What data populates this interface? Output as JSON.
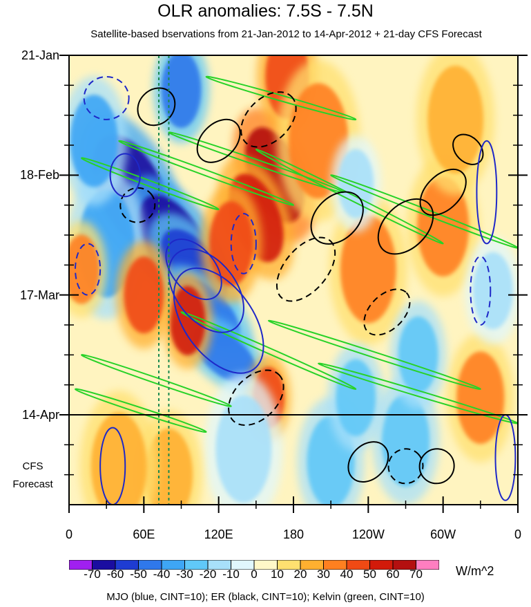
{
  "chart_data": {
    "type": "heatmap",
    "title": "OLR anomalies: 7.5S - 7.5N",
    "subtitle": "Satellite-based bservations from 21-Jan-2012 to 14-Apr-2012 + 21-day CFS Forecast",
    "x_tick_labels": [
      "0",
      "60E",
      "120E",
      "180",
      "120W",
      "60W",
      "0"
    ],
    "x_tick_longitudes": [
      0,
      60,
      120,
      180,
      240,
      300,
      360
    ],
    "y_tick_labels": [
      "21-Jan",
      "18-Feb",
      "17-Mar",
      "14-Apr"
    ],
    "y_tick_days": [
      0,
      28,
      56,
      84
    ],
    "forecast_label": [
      "CFS",
      "Forecast"
    ],
    "time_range_days": [
      0,
      105
    ],
    "observation_end_day": 84,
    "colorbar": {
      "levels": [
        "-70",
        "-60",
        "-50",
        "-40",
        "-30",
        "-20",
        "-10",
        "0",
        "10",
        "20",
        "30",
        "40",
        "50",
        "60",
        "70"
      ],
      "units": "W/m^2",
      "colors": [
        "#a020f0",
        "#1a0da0",
        "#1e3cd2",
        "#2f78eb",
        "#3ea6f5",
        "#60c8f8",
        "#a8e0fa",
        "#e0f7fd",
        "#fff8c8",
        "#ffe070",
        "#ffb030",
        "#ff8020",
        "#f04a14",
        "#d21a0a",
        "#b41010",
        "#ff7ec0"
      ]
    },
    "footer": "MJO (blue, CINT=10); ER (black, CINT=10); Kelvin (green, CINT=10)",
    "contour_colors": {
      "mjo": "#1e28c8",
      "er": "#000000",
      "kelvin": "#28d228",
      "reference": "#1a8a50"
    },
    "reference_longitudes": [
      72,
      80
    ],
    "anomaly_blobs": [
      {
        "lon": 50,
        "day": 32,
        "value": -65,
        "size": 16,
        "tilt": -25
      },
      {
        "lon": 85,
        "day": 44,
        "value": -70,
        "size": 14,
        "tilt": -30
      },
      {
        "lon": 100,
        "day": 50,
        "value": -55,
        "size": 12,
        "tilt": -35
      },
      {
        "lon": 110,
        "day": 60,
        "value": -50,
        "size": 11,
        "tilt": -45
      },
      {
        "lon": 125,
        "day": 70,
        "value": -45,
        "size": 10,
        "tilt": -50
      },
      {
        "lon": 30,
        "day": 44,
        "value": -40,
        "size": 14,
        "tilt": 0
      },
      {
        "lon": 20,
        "day": 20,
        "value": -35,
        "size": 12,
        "tilt": 0
      },
      {
        "lon": 90,
        "day": 8,
        "value": -45,
        "size": 10,
        "tilt": 0
      },
      {
        "lon": 165,
        "day": 28,
        "value": 65,
        "size": 13,
        "tilt": -20
      },
      {
        "lon": 150,
        "day": 38,
        "value": 50,
        "size": 12,
        "tilt": -20
      },
      {
        "lon": 175,
        "day": 5,
        "value": 45,
        "size": 11,
        "tilt": 0
      },
      {
        "lon": 130,
        "day": 44,
        "value": 40,
        "size": 11,
        "tilt": 0
      },
      {
        "lon": 95,
        "day": 62,
        "value": 55,
        "size": 9,
        "tilt": 0
      },
      {
        "lon": 60,
        "day": 56,
        "value": 45,
        "size": 10,
        "tilt": 0
      },
      {
        "lon": 10,
        "day": 50,
        "value": 35,
        "size": 9,
        "tilt": 0
      },
      {
        "lon": 160,
        "day": 80,
        "value": 45,
        "size": 8,
        "tilt": 0
      },
      {
        "lon": 200,
        "day": 20,
        "value": 35,
        "size": 15,
        "tilt": 0
      },
      {
        "lon": 240,
        "day": 50,
        "value": 30,
        "size": 14,
        "tilt": 0
      },
      {
        "lon": 300,
        "day": 40,
        "value": 35,
        "size": 13,
        "tilt": 0
      },
      {
        "lon": 330,
        "day": 80,
        "value": 30,
        "size": 12,
        "tilt": 0
      },
      {
        "lon": 310,
        "day": 15,
        "value": 25,
        "size": 14,
        "tilt": 0
      },
      {
        "lon": 270,
        "day": 90,
        "value": -30,
        "size": 12,
        "tilt": 0
      },
      {
        "lon": 210,
        "day": 95,
        "value": -25,
        "size": 12,
        "tilt": 0
      },
      {
        "lon": 140,
        "day": 92,
        "value": -20,
        "size": 14,
        "tilt": 0
      },
      {
        "lon": 80,
        "day": 98,
        "value": 20,
        "size": 12,
        "tilt": 0
      },
      {
        "lon": 230,
        "day": 80,
        "value": -30,
        "size": 10,
        "tilt": 0
      },
      {
        "lon": 280,
        "day": 70,
        "value": -25,
        "size": 10,
        "tilt": 0
      },
      {
        "lon": 230,
        "day": 30,
        "value": -20,
        "size": 9,
        "tilt": 0
      },
      {
        "lon": 40,
        "day": 96,
        "value": 20,
        "size": 14,
        "tilt": 0
      },
      {
        "lon": 340,
        "day": 55,
        "value": -20,
        "size": 10,
        "tilt": 0
      }
    ],
    "contours": {
      "mjo": [
        {
          "lon": 100,
          "day": 50,
          "rx": 28,
          "ry": 5,
          "tilt": 50,
          "dashed": false
        },
        {
          "lon": 110,
          "day": 55,
          "rx": 38,
          "ry": 7,
          "tilt": 52,
          "dashed": false
        },
        {
          "lon": 120,
          "day": 62,
          "rx": 48,
          "ry": 8,
          "tilt": 54,
          "dashed": false
        },
        {
          "lon": 30,
          "day": 10,
          "rx": 18,
          "ry": 5,
          "tilt": 0,
          "dashed": true
        },
        {
          "lon": 15,
          "day": 50,
          "rx": 10,
          "ry": 6,
          "tilt": 0,
          "dashed": true
        },
        {
          "lon": 45,
          "day": 28,
          "rx": 12,
          "ry": 5,
          "tilt": 0,
          "dashed": false
        },
        {
          "lon": 335,
          "day": 32,
          "rx": 8,
          "ry": 12,
          "tilt": 0,
          "dashed": false
        },
        {
          "lon": 330,
          "day": 55,
          "rx": 8,
          "ry": 8,
          "tilt": 0,
          "dashed": true
        },
        {
          "lon": 35,
          "day": 96,
          "rx": 10,
          "ry": 9,
          "tilt": 0,
          "dashed": false
        },
        {
          "lon": 350,
          "day": 94,
          "rx": 8,
          "ry": 10,
          "tilt": 0,
          "dashed": false
        },
        {
          "lon": 140,
          "day": 44,
          "rx": 10,
          "ry": 7,
          "tilt": 0,
          "dashed": true
        }
      ],
      "er": [
        {
          "lon": 270,
          "day": 40,
          "rx": 26,
          "ry": 5,
          "tilt": -45,
          "dashed": false
        },
        {
          "lon": 300,
          "day": 32,
          "rx": 22,
          "ry": 4,
          "tilt": -45,
          "dashed": false
        },
        {
          "lon": 255,
          "day": 60,
          "rx": 22,
          "ry": 4,
          "tilt": -45,
          "dashed": true
        },
        {
          "lon": 215,
          "day": 38,
          "rx": 24,
          "ry": 5,
          "tilt": -45,
          "dashed": false
        },
        {
          "lon": 190,
          "day": 50,
          "rx": 30,
          "ry": 5,
          "tilt": -50,
          "dashed": true
        },
        {
          "lon": 160,
          "day": 15,
          "rx": 26,
          "ry": 5,
          "tilt": -45,
          "dashed": true
        },
        {
          "lon": 70,
          "day": 12,
          "rx": 16,
          "ry": 4,
          "tilt": -45,
          "dashed": false
        },
        {
          "lon": 55,
          "day": 35,
          "rx": 14,
          "ry": 4,
          "tilt": -40,
          "dashed": true
        },
        {
          "lon": 150,
          "day": 80,
          "rx": 26,
          "ry": 5,
          "tilt": -45,
          "dashed": true
        },
        {
          "lon": 240,
          "day": 95,
          "rx": 18,
          "ry": 4,
          "tilt": -45,
          "dashed": false
        },
        {
          "lon": 270,
          "day": 96,
          "rx": 14,
          "ry": 4,
          "tilt": -45,
          "dashed": true
        },
        {
          "lon": 295,
          "day": 96,
          "rx": 14,
          "ry": 4,
          "tilt": -45,
          "dashed": false
        },
        {
          "lon": 120,
          "day": 20,
          "rx": 20,
          "ry": 4,
          "tilt": -45,
          "dashed": false
        },
        {
          "lon": 320,
          "day": 22,
          "rx": 10,
          "ry": 4,
          "tilt": -45,
          "dashed": false
        }
      ],
      "kelvin": [
        {
          "lon1": 10,
          "day1": 24,
          "lon2": 120,
          "day2": 36
        },
        {
          "lon1": 40,
          "day1": 20,
          "lon2": 180,
          "day2": 35
        },
        {
          "lon1": 80,
          "day1": 18,
          "lon2": 220,
          "day2": 32
        },
        {
          "lon1": 150,
          "day1": 22,
          "lon2": 300,
          "day2": 44
        },
        {
          "lon1": 10,
          "day1": 70,
          "lon2": 130,
          "day2": 82
        },
        {
          "lon1": 5,
          "day1": 78,
          "lon2": 110,
          "day2": 88
        },
        {
          "lon1": 90,
          "day1": 60,
          "lon2": 230,
          "day2": 78
        },
        {
          "lon1": 160,
          "day1": 62,
          "lon2": 330,
          "day2": 78
        },
        {
          "lon1": 200,
          "day1": 72,
          "lon2": 360,
          "day2": 86
        },
        {
          "lon1": 210,
          "day1": 28,
          "lon2": 360,
          "day2": 45
        },
        {
          "lon1": 110,
          "day1": 5,
          "lon2": 230,
          "day2": 15
        }
      ]
    }
  }
}
